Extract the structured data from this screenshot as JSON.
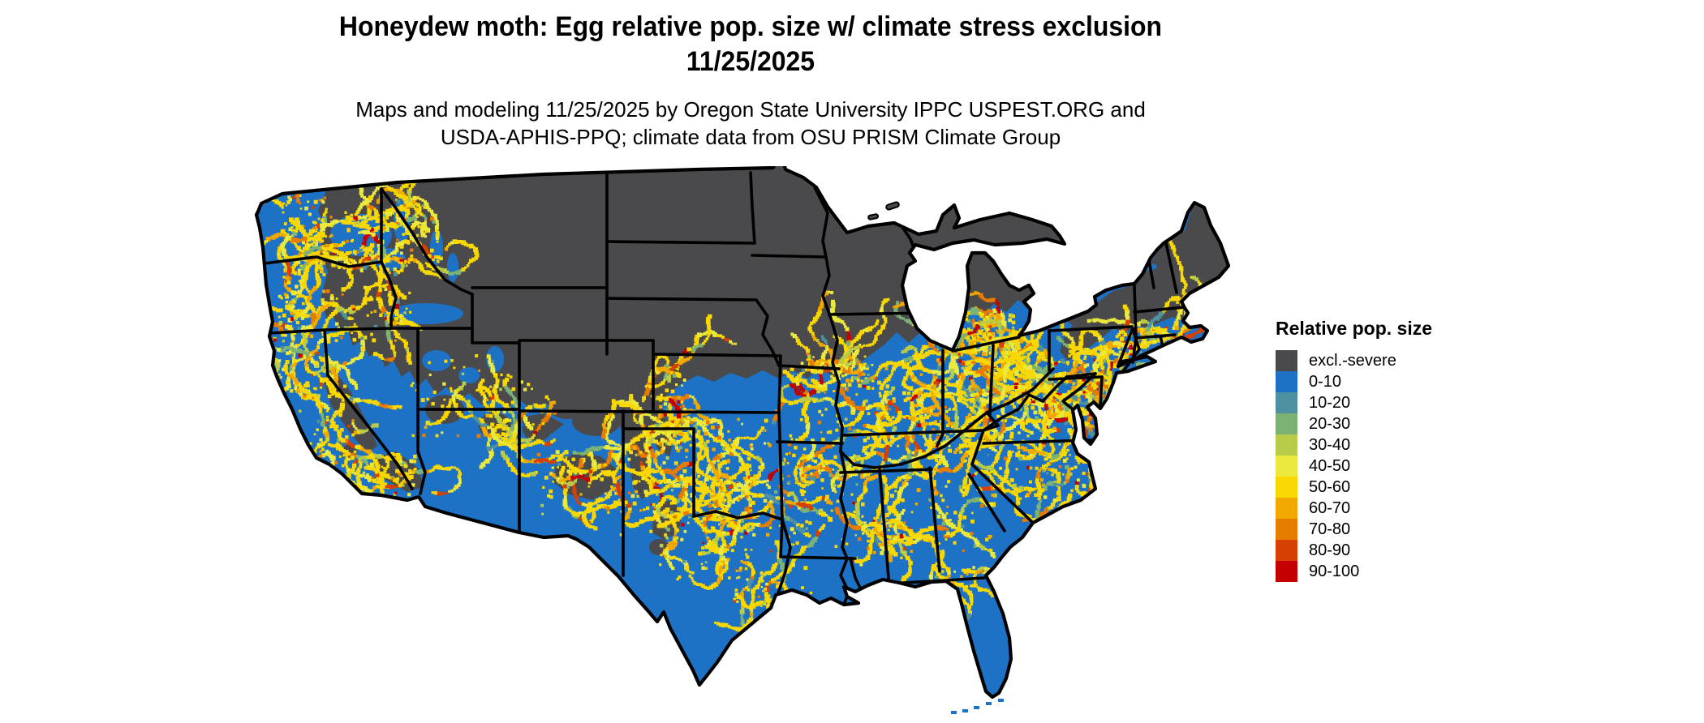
{
  "header": {
    "title_line1": "Honeydew moth: Egg relative pop. size w/ climate stress exclusion",
    "title_line2": "11/25/2025",
    "subtitle_line1": "Maps and modeling 11/25/2025 by Oregon State University IPPC USPEST.ORG and",
    "subtitle_line2": "USDA-APHIS-PPQ; climate data from OSU PRISM Climate Group"
  },
  "legend": {
    "title": "Relative pop. size",
    "items": [
      {
        "label": "excl.-severe",
        "color": "#4a4a4d"
      },
      {
        "label": "0-10",
        "color": "#1d72c6"
      },
      {
        "label": "10-20",
        "color": "#4e91a0"
      },
      {
        "label": "20-30",
        "color": "#7cb374"
      },
      {
        "label": "30-40",
        "color": "#b9cc4a"
      },
      {
        "label": "40-50",
        "color": "#ece93e"
      },
      {
        "label": "50-60",
        "color": "#f8d800"
      },
      {
        "label": "60-70",
        "color": "#f1a800"
      },
      {
        "label": "70-80",
        "color": "#e87c00"
      },
      {
        "label": "80-90",
        "color": "#d64000"
      },
      {
        "label": "90-100",
        "color": "#c40000"
      }
    ]
  },
  "map": {
    "region": "Contiguous United States",
    "background_color": "#ffffff",
    "base_value_color": "#1d72c6",
    "excluded_color": "#4a4a4d",
    "state_border_color": "#000000"
  }
}
